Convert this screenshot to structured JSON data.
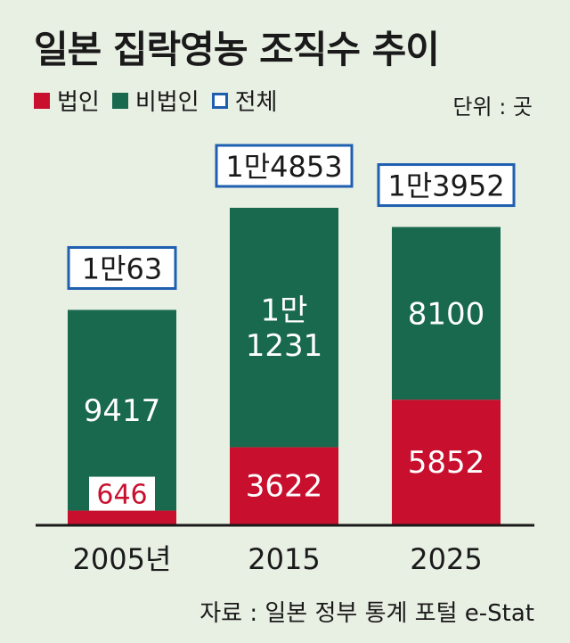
{
  "chart_data": {
    "type": "bar",
    "stacked": true,
    "title": "일본 집락영농 조직수 추이",
    "unit_label": "단위 : 곳",
    "source": "자료 : 일본 정부 통계 포털 e-Stat",
    "categories": [
      "2005년",
      "2015",
      "2025"
    ],
    "series": [
      {
        "name": "법인",
        "color": "#c8102e",
        "values": [
          646,
          3622,
          5852
        ],
        "labels": [
          "646",
          "3622",
          "5852"
        ]
      },
      {
        "name": "비법인",
        "color": "#19694f",
        "values": [
          9417,
          11231,
          8100
        ],
        "labels": [
          "9417",
          "1만\n1231",
          "8100"
        ]
      }
    ],
    "totals": {
      "name": "전체",
      "color": "#1f5fb0",
      "values": [
        10063,
        14853,
        13952
      ],
      "labels": [
        "1만63",
        "1만4853",
        "1만3952"
      ]
    }
  }
}
